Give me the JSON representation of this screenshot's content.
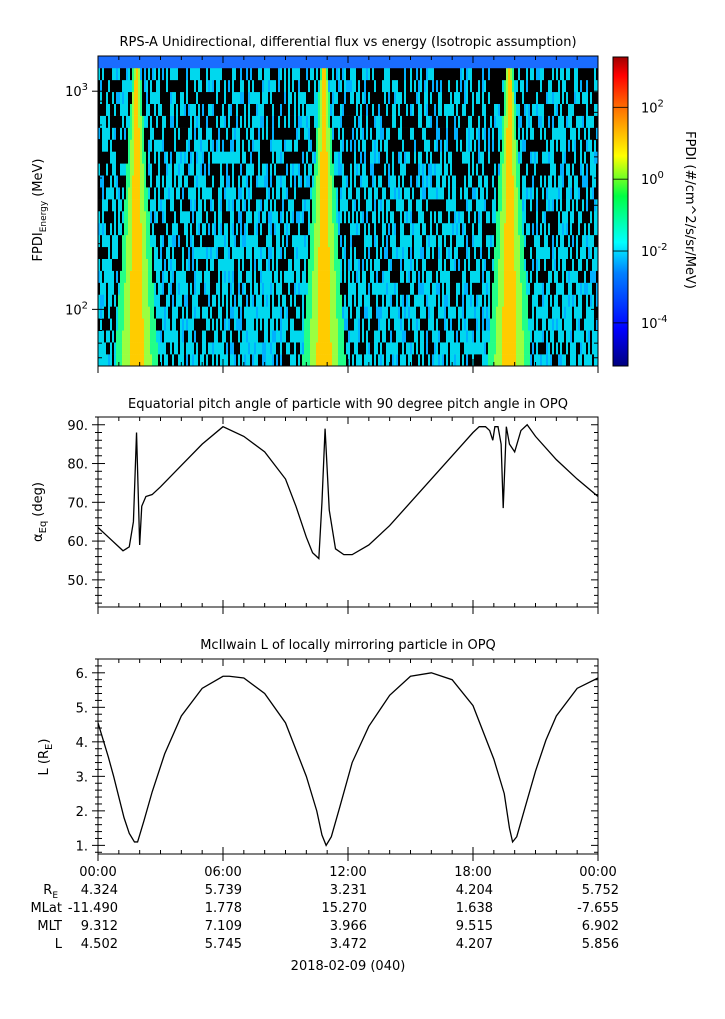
{
  "chart_data": [
    {
      "type": "heatmap",
      "title": "RPS-A Unidirectional, differential flux vs energy (Isotropic assumption)",
      "ylabel": "FPDI",
      "ylabel_sub": "Energy",
      "ylabel_unit": "(MeV)",
      "yscale": "log",
      "ylim": [
        55,
        1450
      ],
      "yticks": [
        {
          "value": 100,
          "base": "10",
          "exp": "2"
        },
        {
          "value": 1000,
          "base": "10",
          "exp": "3"
        }
      ],
      "colorbar": {
        "label": "FPDI (#/cm^2/s/sr/MeV)",
        "scale": "log",
        "range_exp": [
          -5.2,
          3.4
        ],
        "ticks": [
          {
            "value_exp": -4,
            "base": "10",
            "exp": "-4"
          },
          {
            "value_exp": -2,
            "base": "10",
            "exp": "-2"
          },
          {
            "value_exp": 0,
            "base": "10",
            "exp": "0"
          },
          {
            "value_exp": 2,
            "base": "10",
            "exp": "2"
          }
        ],
        "colormap": [
          "#00007f",
          "#0000ff",
          "#007fff",
          "#00ffff",
          "#7fff7f",
          "#ffff00",
          "#ff7f00",
          "#ff0000",
          "#7f0000"
        ]
      },
      "peak_hours": [
        1.8,
        10.8,
        19.7
      ],
      "background_color": "#00d8ee",
      "dropout_color": "#000000",
      "top_band_color": "#1a6cff"
    },
    {
      "type": "line",
      "title": "Equatorial pitch angle of particle with 90 degree pitch angle in OPQ",
      "ylabel": "α",
      "ylabel_sub": "Eq",
      "ylabel_unit": "(deg)",
      "ylim": [
        43,
        92
      ],
      "yticks": [
        50,
        60,
        70,
        80,
        90
      ],
      "x_hours": [
        0,
        0.5,
        1,
        1.2,
        1.5,
        1.7,
        1.85,
        2.0,
        2.1,
        2.3,
        2.6,
        3.0,
        4,
        5,
        6,
        7,
        8,
        9,
        9.5,
        10,
        10.3,
        10.6,
        10.75,
        10.9,
        11.1,
        11.4,
        11.8,
        12.2,
        13,
        14,
        15,
        16,
        17,
        17.5,
        18,
        18.3,
        18.6,
        18.8,
        18.95,
        19.05,
        19.2,
        19.35,
        19.45,
        19.6,
        19.75,
        20.0,
        20.3,
        20.6,
        21,
        22,
        23,
        24
      ],
      "values": [
        63.5,
        61,
        58.5,
        57.5,
        58.5,
        65,
        88,
        59,
        69,
        71.5,
        72,
        74,
        79.5,
        85,
        89.5,
        87,
        83,
        76,
        69,
        61,
        57,
        55.5,
        70,
        89,
        68,
        58,
        56.5,
        56.5,
        59,
        64,
        70,
        76,
        82,
        85,
        88,
        89.5,
        89.5,
        88.5,
        86,
        89.5,
        89.5,
        85,
        68.5,
        89.5,
        85,
        83,
        88.5,
        90,
        87,
        81,
        76,
        71.5
      ]
    },
    {
      "type": "line",
      "title": "McIlwain L of locally mirroring particle in OPQ",
      "ylabel": "L",
      "ylabel_paren_base": "R",
      "ylabel_paren_sub": "E",
      "ylim": [
        0.75,
        6.4
      ],
      "yticks": [
        1,
        2,
        3,
        4,
        5,
        6
      ],
      "x_hours": [
        0,
        0.25,
        0.5,
        0.75,
        1,
        1.25,
        1.5,
        1.75,
        1.9,
        2.0,
        2.2,
        2.6,
        3.2,
        4,
        5,
        6,
        6.3,
        7,
        8,
        9,
        10,
        10.5,
        10.75,
        10.95,
        11.2,
        11.6,
        12.2,
        13,
        14,
        15,
        16,
        17,
        18,
        19,
        19.5,
        19.75,
        19.9,
        20.1,
        20.5,
        21,
        21.5,
        22,
        23,
        24
      ],
      "values": [
        4.55,
        4.05,
        3.55,
        3.0,
        2.4,
        1.8,
        1.35,
        1.1,
        1.1,
        1.3,
        1.7,
        2.55,
        3.65,
        4.75,
        5.55,
        5.9,
        5.9,
        5.85,
        5.4,
        4.55,
        3.0,
        2.0,
        1.3,
        1.0,
        1.25,
        2.1,
        3.4,
        4.45,
        5.35,
        5.9,
        6.0,
        5.8,
        5.05,
        3.5,
        2.5,
        1.5,
        1.1,
        1.25,
        2.1,
        3.15,
        4.05,
        4.75,
        5.55,
        5.85
      ]
    }
  ],
  "x_axis": {
    "ticks": [
      "00:00",
      "06:00",
      "12:00",
      "18:00",
      "00:00"
    ],
    "tick_hours": [
      0,
      6,
      12,
      18,
      24
    ],
    "date_label": "2018-02-09 (040)"
  },
  "ephemeris": {
    "rows": [
      {
        "label": "R",
        "label_sub": "E",
        "values": [
          "4.324",
          "5.739",
          "3.231",
          "4.204",
          "5.752"
        ]
      },
      {
        "label": "MLat",
        "label_sub": "",
        "values": [
          "-11.490",
          "1.778",
          "15.270",
          "1.638",
          "-7.655"
        ]
      },
      {
        "label": "MLT",
        "label_sub": "",
        "values": [
          "9.312",
          "7.109",
          "3.966",
          "9.515",
          "6.902"
        ]
      },
      {
        "label": "L",
        "label_sub": "",
        "values": [
          "4.502",
          "5.745",
          "3.472",
          "4.207",
          "5.856"
        ]
      }
    ]
  }
}
